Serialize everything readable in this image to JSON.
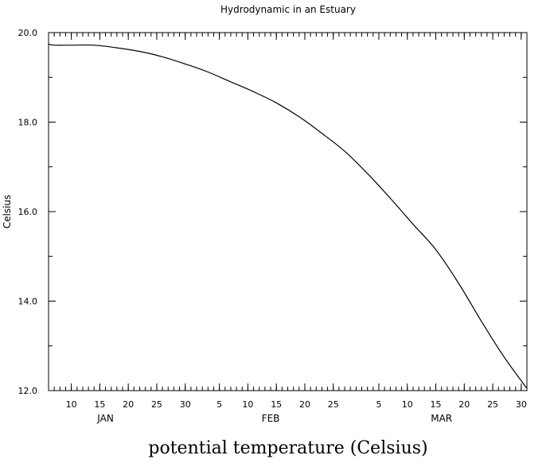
{
  "chart_data": {
    "type": "line",
    "title": "Hydrodynamic in an Estuary",
    "xlabel": "potential temperature (Celsius)",
    "ylabel": "Celsius",
    "ylim": [
      12.0,
      20.0
    ],
    "y_ticks": [
      "12.0",
      "14.0",
      "16.0",
      "18.0",
      "20.0"
    ],
    "x_day_ticks": [
      {
        "day": 10,
        "label": "10"
      },
      {
        "day": 15,
        "label": "15"
      },
      {
        "day": 20,
        "label": "20"
      },
      {
        "day": 25,
        "label": "25"
      },
      {
        "day": 30,
        "label": "30"
      },
      {
        "day": 36,
        "label": "5"
      },
      {
        "day": 41,
        "label": "10"
      },
      {
        "day": 46,
        "label": "15"
      },
      {
        "day": 51,
        "label": "20"
      },
      {
        "day": 56,
        "label": "25"
      },
      {
        "day": 64,
        "label": "5"
      },
      {
        "day": 69,
        "label": "10"
      },
      {
        "day": 74,
        "label": "15"
      },
      {
        "day": 79,
        "label": "20"
      },
      {
        "day": 84,
        "label": "25"
      },
      {
        "day": 89,
        "label": "30"
      }
    ],
    "x_month_labels": [
      {
        "day": 16,
        "label": "JAN"
      },
      {
        "day": 45,
        "label": "FEB"
      },
      {
        "day": 75,
        "label": "MAR"
      }
    ],
    "xlim_day": [
      6,
      90
    ],
    "x": [
      6,
      7,
      10,
      14,
      18,
      22,
      26,
      30,
      34,
      38,
      42,
      46,
      50,
      54,
      58,
      62,
      66,
      70,
      74,
      78,
      82,
      86,
      90
    ],
    "values": [
      19.74,
      19.72,
      19.72,
      19.72,
      19.66,
      19.58,
      19.46,
      19.3,
      19.12,
      18.9,
      18.68,
      18.43,
      18.12,
      17.75,
      17.35,
      16.85,
      16.3,
      15.72,
      15.15,
      14.4,
      13.55,
      12.75,
      12.05
    ]
  }
}
